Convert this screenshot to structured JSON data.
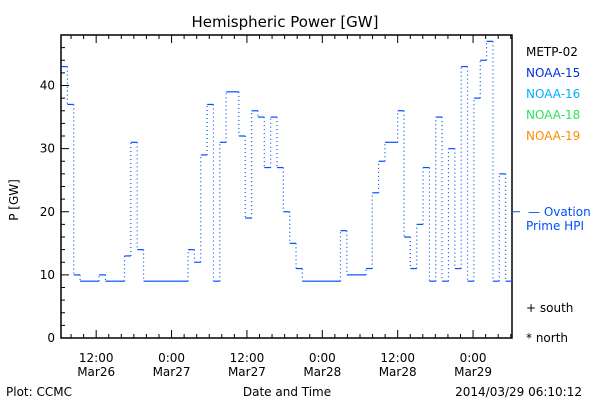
{
  "chart_data": {
    "type": "line",
    "title": "Hemispheric Power [GW]",
    "xlabel": "Date and Time",
    "ylabel": "P [GW]",
    "xunits": "hours since 2014-03-26 00:00 UT",
    "xlim": [
      6.4,
      78.2
    ],
    "ylim": [
      0,
      48
    ],
    "yticks": [
      0,
      10,
      20,
      30,
      40
    ],
    "xticks": [
      {
        "x": 12,
        "label1": "12:00",
        "label2": "Mar26"
      },
      {
        "x": 24,
        "label1": "0:00",
        "label2": "Mar27"
      },
      {
        "x": 36,
        "label1": "12:00",
        "label2": "Mar27"
      },
      {
        "x": 48,
        "label1": "0:00",
        "label2": "Mar28"
      },
      {
        "x": 60,
        "label1": "12:00",
        "label2": "Mar28"
      },
      {
        "x": 72,
        "label1": "0:00",
        "label2": "Mar29"
      }
    ],
    "series": [
      {
        "name": "NOAA-15",
        "color": "#0050ff",
        "style": "step",
        "values": [
          43,
          37,
          10,
          9,
          9,
          9,
          10,
          9,
          9,
          9,
          13,
          31,
          14,
          9,
          9,
          9,
          9,
          9,
          9,
          9,
          14,
          12,
          29,
          37,
          9,
          31,
          39,
          39,
          32,
          19,
          36,
          35,
          27,
          35,
          27,
          20,
          15,
          11,
          9,
          9,
          9,
          9,
          9,
          9,
          17,
          10,
          10,
          10,
          11,
          23,
          28,
          31,
          31,
          36,
          16,
          11,
          18,
          27,
          9,
          35,
          9,
          30,
          11,
          43,
          9,
          38,
          44,
          47,
          9,
          26,
          9
        ]
      }
    ],
    "legend": [
      {
        "label": "METP-02",
        "color": "#000000"
      },
      {
        "label": "NOAA-15",
        "color": "#0030e0"
      },
      {
        "label": "NOAA-16",
        "color": "#00b0ff"
      },
      {
        "label": "NOAA-18",
        "color": "#30e060"
      },
      {
        "label": "NOAA-19",
        "color": "#ff8c00"
      }
    ],
    "legend_position": "right",
    "ovation": {
      "label1": "— Ovation",
      "label2": "Prime HPI",
      "value": 20,
      "color": "#0050ff"
    },
    "markers": {
      "south": "+ south",
      "north": "* north"
    }
  },
  "footer": {
    "left": "Plot: CCMC",
    "right": "2014/03/29 06:10:12"
  }
}
